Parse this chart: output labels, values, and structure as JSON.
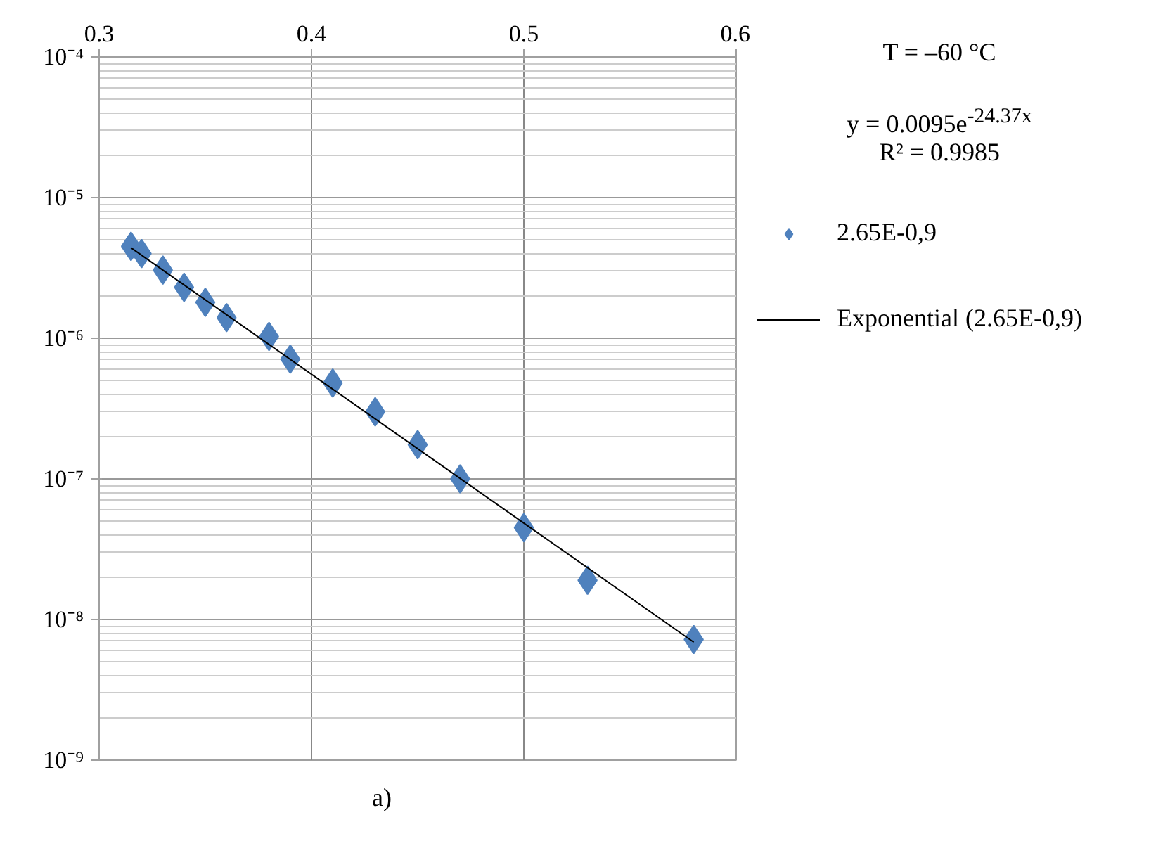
{
  "chart_data": {
    "type": "scatter",
    "x": [
      0.315,
      0.32,
      0.33,
      0.34,
      0.35,
      0.36,
      0.38,
      0.39,
      0.41,
      0.43,
      0.45,
      0.47,
      0.5,
      0.53,
      0.58
    ],
    "series": [
      {
        "name": "2.65E-0,9",
        "color": "#4f81bd",
        "marker": "diamond",
        "values": [
          4.5e-06,
          4e-06,
          3.05e-06,
          2.3e-06,
          1.8e-06,
          1.4e-06,
          1.03e-06,
          7.1e-07,
          4.8e-07,
          3e-07,
          1.75e-07,
          1e-07,
          4.5e-08,
          1.9e-08,
          7.2e-09
        ]
      },
      {
        "name": "Exponential (2.65E-0,9)",
        "type": "line",
        "color": "#000000",
        "line_style": "solid",
        "marker": "none",
        "x": [
          0.315,
          0.58
        ],
        "values": [
          4.4e-06,
          6.9e-09
        ]
      }
    ],
    "xlim": [
      0.3,
      0.6
    ],
    "xticks": [
      0.3,
      0.4,
      0.5,
      0.6
    ],
    "ylim": [
      1e-09,
      0.0001
    ],
    "yticks": [
      {
        "value": 1e-09,
        "label": "10⁻⁹"
      },
      {
        "value": 1e-08,
        "label": "10⁻⁸"
      },
      {
        "value": 1e-07,
        "label": "10⁻⁷"
      },
      {
        "value": 1e-06,
        "label": "10⁻⁶"
      },
      {
        "value": 1e-05,
        "label": "10⁻⁵"
      },
      {
        "value": 0.0001,
        "label": "10⁻⁴"
      }
    ],
    "log": "y",
    "grid": true,
    "legend": "right",
    "annotations": [
      "T = –60 °C",
      "y = 0.0095e$^{-24.37x}$",
      "R² = 0.9985",
      "a)"
    ]
  }
}
